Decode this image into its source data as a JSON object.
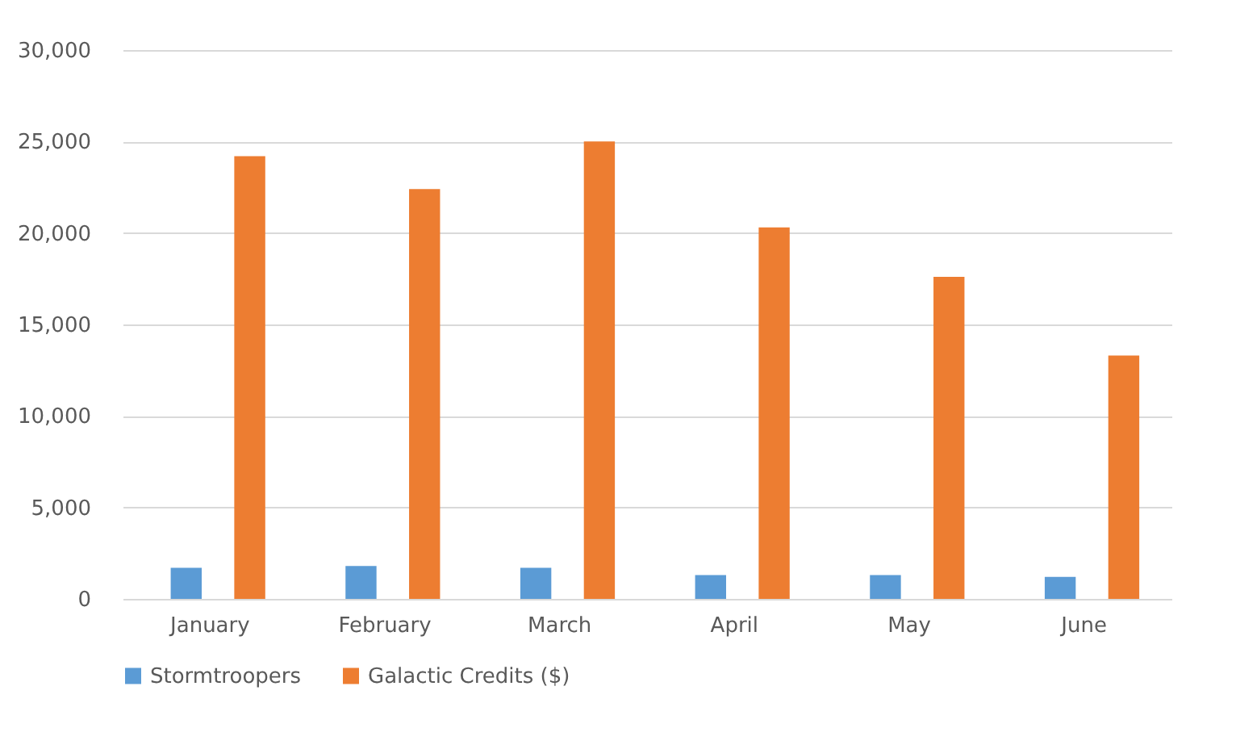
{
  "chart_data": {
    "type": "bar",
    "categories": [
      "January",
      "February",
      "March",
      "April",
      "May",
      "June"
    ],
    "series": [
      {
        "name": "Stormtroopers",
        "color": "#5b9bd5",
        "values": [
          1700,
          1800,
          1700,
          1300,
          1300,
          1200
        ]
      },
      {
        "name": "Galactic Credits ($)",
        "color": "#ed7d31",
        "values": [
          24200,
          22400,
          25000,
          20300,
          17600,
          13300
        ]
      }
    ],
    "ylim": [
      0,
      30000
    ],
    "yticks": [
      0,
      {
        "value": 5000,
        "label": "5,000"
      },
      {
        "value": 10000,
        "label": "10,000"
      },
      {
        "value": 15000,
        "label": "15,000"
      },
      {
        "value": 20000,
        "label": "20,000"
      },
      {
        "value": 25000,
        "label": "25,000"
      },
      {
        "value": 30000,
        "label": "30,000"
      }
    ],
    "grid": "y",
    "legend": "bottom"
  }
}
